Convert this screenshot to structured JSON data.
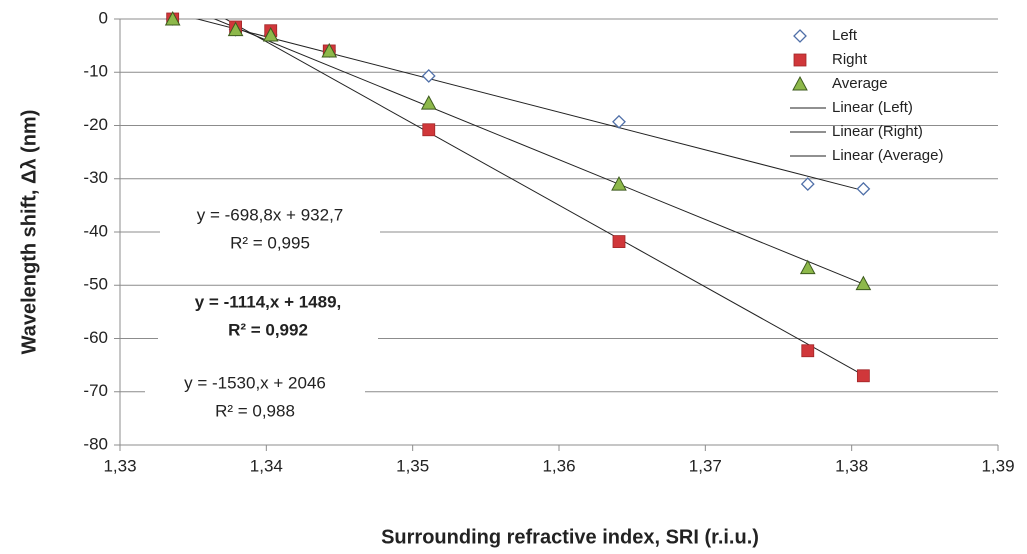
{
  "chart_data": {
    "type": "scatter",
    "x_label": "Surrounding refractive index, SRI (r.i.u.)",
    "y_label": "Wavelength shift, Δλ (nm)",
    "x": [
      1.3336,
      1.3379,
      1.3403,
      1.3443,
      1.3511,
      1.3641,
      1.377,
      1.3808
    ],
    "series": [
      {
        "name": "Left",
        "trendline_name": "Linear (Left)",
        "marker": "diamond",
        "color": "#4f6fa8",
        "values": [
          0,
          -2,
          -3,
          -6,
          -10.7,
          -19.3,
          -31,
          -31.9
        ]
      },
      {
        "name": "Right",
        "trendline_name": "Linear (Right)",
        "marker": "square",
        "color": "#d0373a",
        "values": [
          0,
          -1.5,
          -2.2,
          -6,
          -20.8,
          -41.8,
          -62.3,
          -67
        ]
      },
      {
        "name": "Average",
        "trendline_name": "Linear (Average)",
        "marker": "triangle",
        "color": "#8db84a",
        "values": [
          0,
          -2,
          -3,
          -6,
          -15.8,
          -31,
          -46.7,
          -49.7
        ]
      }
    ],
    "annotations": [
      {
        "lines": [
          "y = -698,8x + 932,7",
          "R² = 0,995"
        ],
        "bold": false
      },
      {
        "lines": [
          "y = -1114,x + 1489,",
          "R² = 0,992"
        ],
        "bold": true
      },
      {
        "lines": [
          "y = -1530,x + 2046",
          "R² = 0,988"
        ],
        "bold": false
      }
    ],
    "xlim": [
      1.33,
      1.39
    ],
    "xticks": [
      {
        "value": 1.33,
        "label": "1,33"
      },
      {
        "value": 1.34,
        "label": "1,34"
      },
      {
        "value": 1.35,
        "label": "1,35"
      },
      {
        "value": 1.36,
        "label": "1,36"
      },
      {
        "value": 1.37,
        "label": "1,37"
      },
      {
        "value": 1.38,
        "label": "1,38"
      },
      {
        "value": 1.39,
        "label": "1,39"
      }
    ],
    "ylim": [
      -80,
      0
    ],
    "yticks": [
      0,
      -10,
      -20,
      -30,
      -40,
      -50,
      -60,
      -70,
      -80
    ],
    "grid": true,
    "legend": "top-right"
  }
}
